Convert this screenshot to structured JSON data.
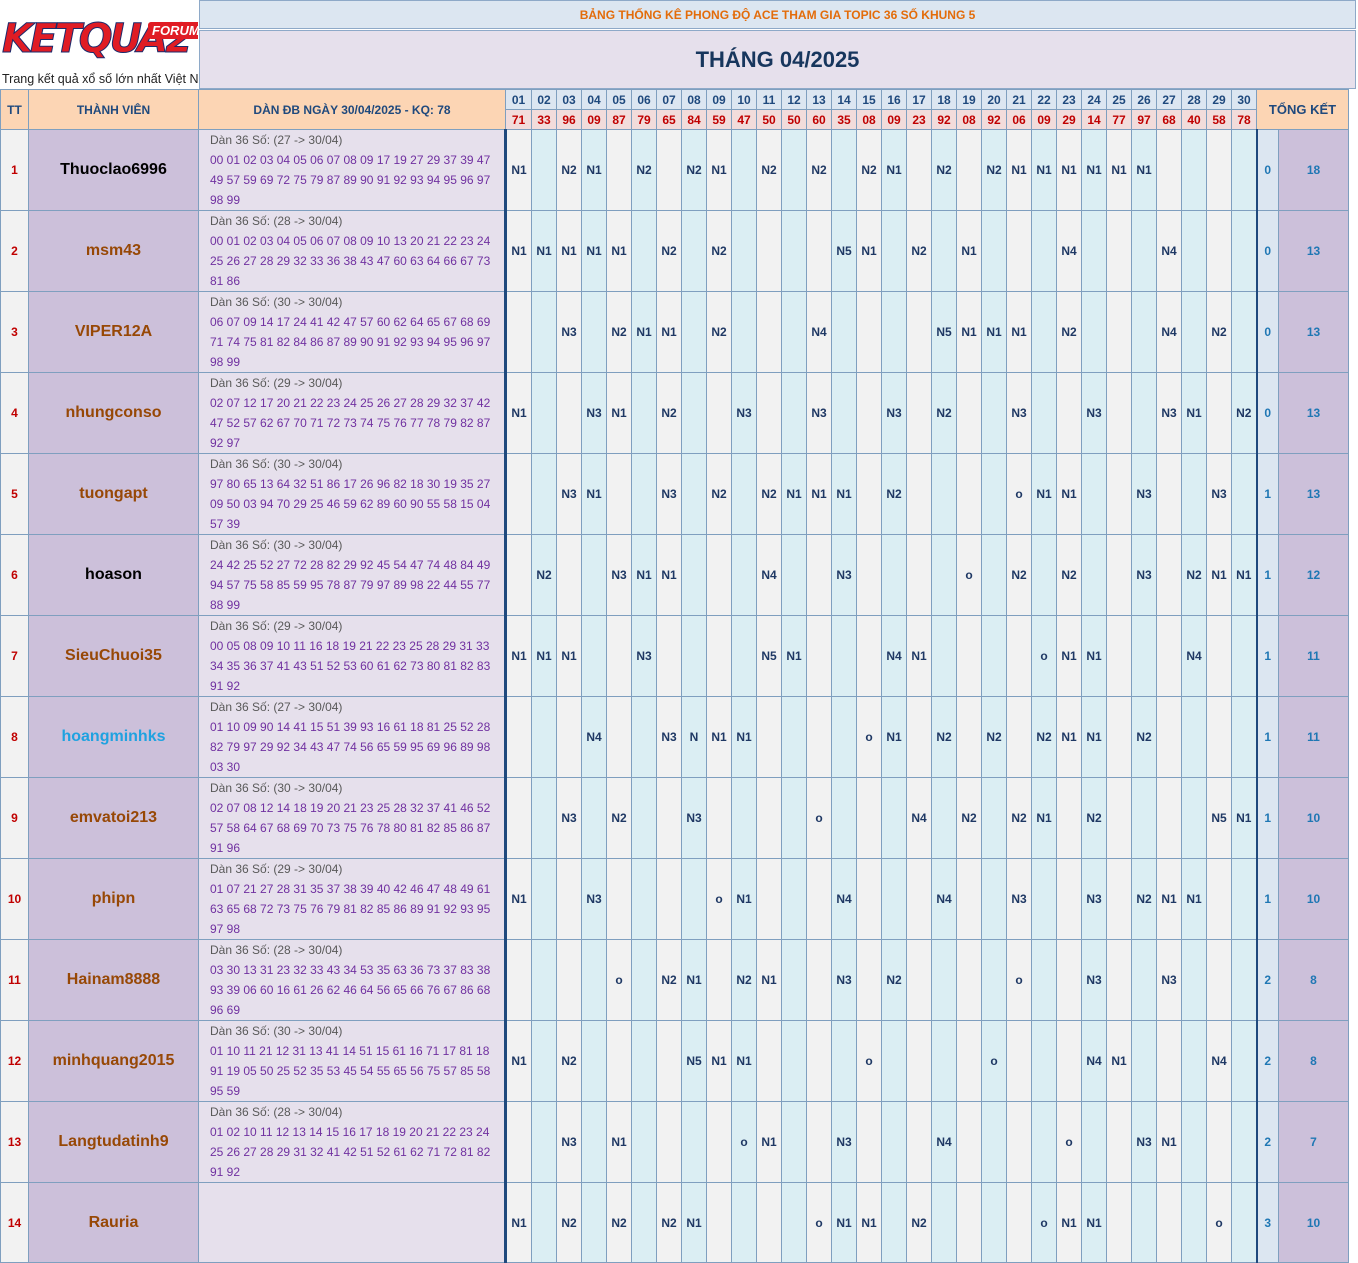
{
  "logo": {
    "brand": "KETQUA2",
    "badge": "FORUM",
    "tagline": "Trang kết quả xổ số lớn nhất Việt Nam"
  },
  "title": "BẢNG THỐNG KÊ PHONG ĐỘ ACE THAM GIA TOPIC 36 SỐ KHUNG 5",
  "month": "THÁNG 04/2025",
  "headers": {
    "tt": "TT",
    "member": "THÀNH VIÊN",
    "dan": "DÀN ĐB NGÀY 30/04/2025 - KQ: 78",
    "summary": "TỔNG KẾT"
  },
  "days": [
    "01",
    "02",
    "03",
    "04",
    "05",
    "06",
    "07",
    "08",
    "09",
    "10",
    "11",
    "12",
    "13",
    "14",
    "15",
    "16",
    "17",
    "18",
    "19",
    "20",
    "21",
    "22",
    "23",
    "24",
    "25",
    "26",
    "27",
    "28",
    "29",
    "30"
  ],
  "results": [
    "71",
    "33",
    "96",
    "09",
    "87",
    "79",
    "65",
    "84",
    "59",
    "47",
    "50",
    "50",
    "60",
    "35",
    "08",
    "09",
    "23",
    "92",
    "08",
    "92",
    "06",
    "09",
    "29",
    "14",
    "77",
    "97",
    "68",
    "40",
    "58",
    "78"
  ],
  "colors": {
    "member_brown": "#974806",
    "member_black": "#000000",
    "member_cyan": "#1fa2e0"
  },
  "rows": [
    {
      "tt": "1",
      "name": "Thuoclao6996",
      "color": "member_black",
      "dan_head": "Dàn 36 Số: (27 -> 30/04)",
      "dan_nums": "00 01 02 03 04 05 06 07 08 09 17 19 27 29 37 39 47 49 57 59 69 72 75 79 87 89 90 91 92 93 94 95 96 97 98 99",
      "cells": [
        "N1",
        "",
        "N2",
        "N1",
        "",
        "N2",
        "",
        "N2",
        "N1",
        "",
        "N2",
        "",
        "N2",
        "",
        "N2",
        "N1",
        "",
        "N2",
        "",
        "N2",
        "N1",
        "N1",
        "N1",
        "N1",
        "N1",
        "N1",
        "",
        "",
        "",
        ""
      ],
      "s1": "0",
      "s2": "18"
    },
    {
      "tt": "2",
      "name": "msm43",
      "color": "member_brown",
      "dan_head": "Dàn 36 Số: (28 -> 30/04)",
      "dan_nums": "00 01 02 03 04 05 06 07 08 09 10 13 20 21 22 23 24 25 26 27 28 29 32 33 36 38 43 47 60 63 64 66 67 73 81 86",
      "cells": [
        "N1",
        "N1",
        "N1",
        "N1",
        "N1",
        "",
        "N2",
        "",
        "N2",
        "",
        "",
        "",
        "",
        "N5",
        "N1",
        "",
        "N2",
        "",
        "N1",
        "",
        "",
        "",
        "N4",
        "",
        "",
        "",
        "N4",
        "",
        "",
        ""
      ],
      "s1": "0",
      "s2": "13"
    },
    {
      "tt": "3",
      "name": "VIPER12A",
      "color": "member_brown",
      "dan_head": "Dàn 36 Số: (30 -> 30/04)",
      "dan_nums": "06 07 09 14 17 24 41 42 47 57 60 62 64 65 67 68 69 71 74 75 81 82 84 86 87 89 90 91 92 93 94 95 96 97 98 99",
      "cells": [
        "",
        "",
        "N3",
        "",
        "N2",
        "N1",
        "N1",
        "",
        "N2",
        "",
        "",
        "",
        "N4",
        "",
        "",
        "",
        "",
        "N5",
        "N1",
        "N1",
        "N1",
        "",
        "N2",
        "",
        "",
        "",
        "N4",
        "",
        "N2",
        ""
      ],
      "s1": "0",
      "s2": "13"
    },
    {
      "tt": "4",
      "name": "nhungconso",
      "color": "member_brown",
      "dan_head": "Dàn 36 Số: (29 -> 30/04)",
      "dan_nums": "02 07 12 17 20 21 22 23 24 25 26 27 28 29 32 37 42 47 52 57 62 67 70 71 72 73 74 75 76 77 78 79 82 87 92 97",
      "cells": [
        "N1",
        "",
        "",
        "N3",
        "N1",
        "",
        "N2",
        "",
        "",
        "N3",
        "",
        "",
        "N3",
        "",
        "",
        "N3",
        "",
        "N2",
        "",
        "",
        "N3",
        "",
        "",
        "N3",
        "",
        "",
        "N3",
        "N1",
        "",
        "N2"
      ],
      "s1": "0",
      "s2": "13"
    },
    {
      "tt": "5",
      "name": "tuongapt",
      "color": "member_brown",
      "dan_head": "Dàn 36 Số: (30 -> 30/04)",
      "dan_nums": "97 80 65 13 64 32 51 86 17 26 96 82 18 30 19 35 27 09 50 03 94 70 29 25 46 59 62 89 60 90 55 58 15 04 57 39",
      "cells": [
        "",
        "",
        "N3",
        "N1",
        "",
        "",
        "N3",
        "",
        "N2",
        "",
        "N2",
        "N1",
        "N1",
        "N1",
        "",
        "N2",
        "",
        "",
        "",
        "",
        "o",
        "N1",
        "N1",
        "",
        "",
        "N3",
        "",
        "",
        "N3",
        ""
      ],
      "s1": "1",
      "s2": "13"
    },
    {
      "tt": "6",
      "name": "hoason",
      "color": "member_black",
      "dan_head": "Dàn 36 Số: (30 -> 30/04)",
      "dan_nums": "24 42 25 52 27 72 28 82 29 92 45 54 47 74 48 84 49 94 57 75 58 85 59 95 78 87 79 97 89 98 22 44 55 77 88 99",
      "cells": [
        "",
        "N2",
        "",
        "",
        "N3",
        "N1",
        "N1",
        "",
        "",
        "",
        "N4",
        "",
        "",
        "N3",
        "",
        "",
        "",
        "",
        "o",
        "",
        "N2",
        "",
        "N2",
        "",
        "",
        "N3",
        "",
        "N2",
        "N1",
        "N1"
      ],
      "s1": "1",
      "s2": "12"
    },
    {
      "tt": "7",
      "name": "SieuChuoi35",
      "color": "member_brown",
      "dan_head": "Dàn 36 Số: (29 -> 30/04)",
      "dan_nums": "00 05 08 09 10 11 16 18 19 21 22 23 25 28 29 31 33 34 35 36 37 41 43 51 52 53 60 61 62 73 80 81 82 83 91 92",
      "cells": [
        "N1",
        "N1",
        "N1",
        "",
        "",
        "N3",
        "",
        "",
        "",
        "",
        "N5",
        "N1",
        "",
        "",
        "",
        "N4",
        "N1",
        "",
        "",
        "",
        "",
        "o",
        "N1",
        "N1",
        "",
        "",
        "",
        "N4",
        "",
        ""
      ],
      "s1": "1",
      "s2": "11"
    },
    {
      "tt": "8",
      "name": "hoangminhks",
      "color": "member_cyan",
      "dan_head": "Dàn 36 Số: (27 -> 30/04)",
      "dan_nums": "01 10 09 90 14 41 15 51 39 93 16 61 18 81 25 52 28 82 79 97 29 92 34 43 47 74 56 65 59 95 69 96 89 98 03 30",
      "cells": [
        "",
        "",
        "",
        "N4",
        "",
        "",
        "N3",
        "N",
        "N1",
        "N1",
        "",
        "",
        "",
        "",
        "o",
        "N1",
        "",
        "N2",
        "",
        "N2",
        "",
        "N2",
        "N1",
        "N1",
        "",
        "N2",
        "",
        "",
        "",
        ""
      ],
      "s1": "1",
      "s2": "11"
    },
    {
      "tt": "9",
      "name": "emvatoi213",
      "color": "member_brown",
      "dan_head": "Dàn 36 Số: (30 -> 30/04)",
      "dan_nums": "02 07 08 12 14 18 19 20 21 23 25 28 32 37 41 46 52 57 58 64 67 68 69 70 73 75 76 78 80 81 82 85 86 87 91 96",
      "cells": [
        "",
        "",
        "N3",
        "",
        "N2",
        "",
        "",
        "N3",
        "",
        "",
        "",
        "",
        "o",
        "",
        "",
        "",
        "N4",
        "",
        "N2",
        "",
        "N2",
        "N1",
        "",
        "N2",
        "",
        "",
        "",
        "",
        "N5",
        "N1"
      ],
      "s1": "1",
      "s2": "10"
    },
    {
      "tt": "10",
      "name": "phipn",
      "color": "member_brown",
      "dan_head": "Dàn 36 Số: (29 -> 30/04)",
      "dan_nums": "01 07 21 27 28 31 35 37 38 39 40 42 46 47 48 49 61 63 65 68 72 73 75 76 79 81 82 85 86 89 91 92 93 95 97 98",
      "cells": [
        "N1",
        "",
        "",
        "N3",
        "",
        "",
        "",
        "",
        "o",
        "N1",
        "",
        "",
        "",
        "N4",
        "",
        "",
        "",
        "N4",
        "",
        "",
        "N3",
        "",
        "",
        "N3",
        "",
        "N2",
        "N1",
        "N1",
        "",
        ""
      ],
      "s1": "1",
      "s2": "10"
    },
    {
      "tt": "11",
      "name": "Hainam8888",
      "color": "member_brown",
      "dan_head": "Dàn 36 Số: (28 -> 30/04)",
      "dan_nums": "03 30 13 31 23 32 33 43 34 53 35 63 36 73 37 83 38 93 39 06 60 16 61 26 62 46 64 56 65 66 76 67 86 68 96 69",
      "cells": [
        "",
        "",
        "",
        "",
        "o",
        "",
        "N2",
        "N1",
        "",
        "N2",
        "N1",
        "",
        "",
        "N3",
        "",
        "N2",
        "",
        "",
        "",
        "",
        "o",
        "",
        "",
        "N3",
        "",
        "",
        "N3",
        "",
        "",
        ""
      ],
      "s1": "2",
      "s2": "8"
    },
    {
      "tt": "12",
      "name": "minhquang2015",
      "color": "member_brown",
      "dan_head": "Dàn 36 Số: (30 -> 30/04)",
      "dan_nums": "01 10 11 21 12 31 13 41 14 51 15 61 16 71 17 81 18 91 19 05 50 25 52 35 53 45 54 55 65 56 75 57 85 58 95 59",
      "cells": [
        "N1",
        "",
        "N2",
        "",
        "",
        "",
        "",
        "N5",
        "N1",
        "N1",
        "",
        "",
        "",
        "",
        "o",
        "",
        "",
        "",
        "",
        "o",
        "",
        "",
        "",
        "N4",
        "N1",
        "",
        "",
        "",
        "N4",
        ""
      ],
      "s1": "2",
      "s2": "8"
    },
    {
      "tt": "13",
      "name": "Langtudatinh9",
      "color": "member_brown",
      "dan_head": "Dàn 36 Số: (28 -> 30/04)",
      "dan_nums": "01 02 10 11 12 13 14 15 16 17 18 19 20 21 22 23 24 25 26 27 28 29 31 32 41 42 51 52 61 62 71 72 81 82 91 92",
      "cells": [
        "",
        "",
        "N3",
        "",
        "N1",
        "",
        "",
        "",
        "",
        "o",
        "N1",
        "",
        "",
        "N3",
        "",
        "",
        "",
        "N4",
        "",
        "",
        "",
        "",
        "o",
        "",
        "",
        "N3",
        "N1",
        "",
        "",
        ""
      ],
      "s1": "2",
      "s2": "7"
    },
    {
      "tt": "14",
      "name": "Rauria",
      "color": "member_brown",
      "dan_head": "",
      "dan_nums": "",
      "cells": [
        "N1",
        "",
        "N2",
        "",
        "N2",
        "",
        "N2",
        "N1",
        "",
        "",
        "",
        "",
        "o",
        "N1",
        "N1",
        "",
        "N2",
        "",
        "",
        "",
        "",
        "o",
        "N1",
        "N1",
        "",
        "",
        "",
        "",
        "o",
        ""
      ],
      "s1": "3",
      "s2": "10"
    }
  ]
}
